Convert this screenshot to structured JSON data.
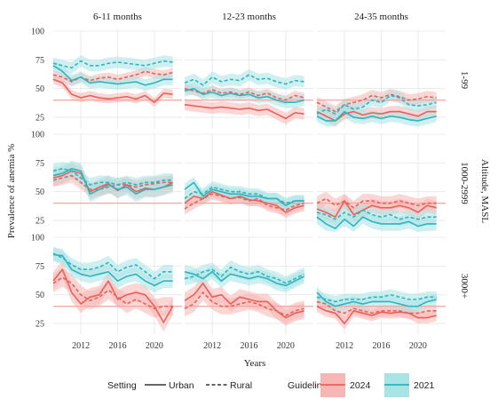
{
  "chart_data": {
    "type": "line",
    "xlabel": "Years",
    "ylabel": "Prevalence of anemia %",
    "row_group_label": "Altitude, MASL",
    "columns": [
      "6-11 months",
      "12-23 months",
      "24-35 months"
    ],
    "rows": [
      "1-99",
      "1000-2999",
      "3000+"
    ],
    "xlim": [
      2009,
      2023
    ],
    "ylim": [
      15,
      100
    ],
    "x_ticks": [
      2012,
      2016,
      2020
    ],
    "x_tick_labels": [
      "2012",
      "2016",
      "2020"
    ],
    "y_ticks": [
      25,
      50,
      75,
      100
    ],
    "y_tick_labels": [
      "25",
      "50",
      "75",
      "100"
    ],
    "grid": true,
    "legend": {
      "position": "bottom",
      "setting_title": "Setting",
      "setting_items": [
        {
          "label": "Urban",
          "style": "solid"
        },
        {
          "label": "Rural",
          "style": "dashed"
        }
      ],
      "guideline_title": "Guideline",
      "guideline_items": [
        {
          "label": "2024",
          "color": "#e8605c",
          "fill": "#f6b6b3"
        },
        {
          "label": "2021",
          "color": "#2fb3bd",
          "fill": "#a8e3e6"
        }
      ]
    },
    "guideline_reference_2024": 40,
    "years": [
      2009,
      2010,
      2011,
      2012,
      2013,
      2014,
      2015,
      2016,
      2017,
      2018,
      2019,
      2020,
      2021,
      2022
    ],
    "panels": [
      {
        "row": "1-99",
        "col": "6-11 months",
        "series": [
          {
            "guideline": "2024",
            "setting": "Urban",
            "values": [
              58,
              55,
              45,
              42,
              44,
              42,
              41,
              42,
              43,
              41,
              44,
              38,
              46,
              45
            ],
            "band": 4
          },
          {
            "guideline": "2024",
            "setting": "Rural",
            "values": [
              62,
              60,
              56,
              60,
              57,
              59,
              60,
              58,
              60,
              62,
              65,
              63,
              62,
              64
            ],
            "band": 4
          },
          {
            "guideline": "2021",
            "setting": "Urban",
            "values": [
              70,
              65,
              57,
              60,
              55,
              56,
              55,
              54,
              55,
              56,
              53,
              55,
              58,
              58
            ],
            "band": 5
          },
          {
            "guideline": "2021",
            "setting": "Rural",
            "values": [
              72,
              70,
              68,
              74,
              70,
              70,
              72,
              73,
              72,
              71,
              70,
              72,
              74,
              73
            ],
            "band": 5
          }
        ]
      },
      {
        "row": "1-99",
        "col": "12-23 months",
        "series": [
          {
            "guideline": "2024",
            "setting": "Urban",
            "values": [
              36,
              35,
              34,
              33,
              34,
              33,
              32,
              33,
              31,
              32,
              28,
              24,
              29,
              28
            ],
            "band": 5
          },
          {
            "guideline": "2024",
            "setting": "Rural",
            "values": [
              50,
              48,
              46,
              49,
              46,
              47,
              45,
              47,
              44,
              46,
              42,
              40,
              44,
              42
            ],
            "band": 4
          },
          {
            "guideline": "2021",
            "setting": "Urban",
            "values": [
              48,
              50,
              45,
              47,
              44,
              46,
              44,
              45,
              42,
              43,
              40,
              38,
              38,
              40
            ],
            "band": 5
          },
          {
            "guideline": "2021",
            "setting": "Rural",
            "values": [
              55,
              58,
              53,
              60,
              56,
              58,
              57,
              62,
              58,
              59,
              56,
              54,
              57,
              56
            ],
            "band": 5
          }
        ]
      },
      {
        "row": "1-99",
        "col": "24-35 months",
        "series": [
          {
            "guideline": "2024",
            "setting": "Urban",
            "values": [
              30,
              26,
              22,
              28,
              30,
              27,
              29,
              28,
              30,
              30,
              28,
              26,
              30,
              30
            ],
            "band": 5
          },
          {
            "guideline": "2024",
            "setting": "Rural",
            "values": [
              38,
              34,
              30,
              36,
              38,
              40,
              44,
              42,
              45,
              43,
              40,
              41,
              43,
              42
            ],
            "band": 5
          },
          {
            "guideline": "2021",
            "setting": "Urban",
            "values": [
              26,
              22,
              22,
              30,
              25,
              24,
              26,
              24,
              26,
              25,
              23,
              22,
              24,
              26
            ],
            "band": 5
          },
          {
            "guideline": "2021",
            "setting": "Rural",
            "values": [
              28,
              32,
              28,
              36,
              32,
              34,
              40,
              38,
              44,
              42,
              36,
              35,
              36,
              38
            ],
            "band": 5
          }
        ]
      },
      {
        "row": "1000-2999",
        "col": "6-11 months",
        "series": [
          {
            "guideline": "2024",
            "setting": "Urban",
            "values": [
              62,
              64,
              68,
              66,
              50,
              54,
              57,
              51,
              56,
              50,
              53,
              52,
              54,
              58
            ],
            "band": 7
          },
          {
            "guideline": "2024",
            "setting": "Rural",
            "values": [
              60,
              62,
              64,
              58,
              52,
              52,
              54,
              56,
              56,
              54,
              56,
              57,
              58,
              58
            ],
            "band": 6
          },
          {
            "guideline": "2021",
            "setting": "Urban",
            "values": [
              64,
              66,
              70,
              68,
              48,
              52,
              56,
              52,
              54,
              48,
              52,
              52,
              54,
              56
            ],
            "band": 7
          },
          {
            "guideline": "2021",
            "setting": "Rural",
            "values": [
              68,
              70,
              68,
              62,
              56,
              58,
              58,
              56,
              58,
              56,
              58,
              58,
              60,
              60
            ],
            "band": 6
          }
        ]
      },
      {
        "row": "1000-2999",
        "col": "12-23 months",
        "series": [
          {
            "guideline": "2024",
            "setting": "Urban",
            "values": [
              40,
              46,
              44,
              50,
              47,
              44,
              46,
              43,
              42,
              40,
              38,
              32,
              36,
              38
            ],
            "band": 5
          },
          {
            "guideline": "2024",
            "setting": "Rural",
            "values": [
              35,
              40,
              44,
              48,
              46,
              44,
              45,
              42,
              44,
              38,
              36,
              34,
              38,
              40
            ],
            "band": 5
          },
          {
            "guideline": "2021",
            "setting": "Urban",
            "values": [
              52,
              58,
              46,
              52,
              50,
              48,
              48,
              46,
              46,
              44,
              44,
              38,
              42,
              42
            ],
            "band": 5
          },
          {
            "guideline": "2021",
            "setting": "Rural",
            "values": [
              44,
              50,
              48,
              54,
              52,
              50,
              50,
              48,
              48,
              44,
              44,
              40,
              42,
              42
            ],
            "band": 5
          }
        ]
      },
      {
        "row": "1000-2999",
        "col": "24-35 months",
        "series": [
          {
            "guideline": "2024",
            "setting": "Urban",
            "values": [
              35,
              32,
              28,
              42,
              30,
              34,
              38,
              36,
              36,
              38,
              36,
              32,
              38,
              36
            ],
            "band": 6
          },
          {
            "guideline": "2024",
            "setting": "Rural",
            "values": [
              40,
              44,
              38,
              42,
              36,
              42,
              42,
              40,
              40,
              42,
              40,
              38,
              40,
              40
            ],
            "band": 6
          },
          {
            "guideline": "2021",
            "setting": "Urban",
            "values": [
              28,
              22,
              18,
              26,
              20,
              28,
              24,
              22,
              22,
              22,
              24,
              20,
              22,
              22
            ],
            "band": 6
          },
          {
            "guideline": "2021",
            "setting": "Rural",
            "values": [
              32,
              30,
              26,
              32,
              28,
              34,
              30,
              28,
              30,
              26,
              28,
              26,
              28,
              28
            ],
            "band": 6
          }
        ]
      },
      {
        "row": "3000+",
        "col": "6-11 months",
        "series": [
          {
            "guideline": "2024",
            "setting": "Urban",
            "values": [
              62,
              72,
              52,
              42,
              48,
              50,
              62,
              46,
              50,
              52,
              50,
              40,
              26,
              40
            ],
            "band": 8
          },
          {
            "guideline": "2024",
            "setting": "Rural",
            "values": [
              60,
              65,
              60,
              50,
              45,
              48,
              54,
              48,
              42,
              46,
              42,
              38,
              40,
              40
            ],
            "band": 8
          },
          {
            "guideline": "2021",
            "setting": "Urban",
            "values": [
              85,
              84,
              72,
              68,
              66,
              68,
              70,
              62,
              66,
              68,
              62,
              58,
              62,
              62
            ],
            "band": 6
          },
          {
            "guideline": "2021",
            "setting": "Rural",
            "values": [
              86,
              82,
              76,
              72,
              72,
              74,
              78,
              70,
              74,
              76,
              70,
              64,
              70,
              70
            ],
            "band": 6
          }
        ]
      },
      {
        "row": "3000+",
        "col": "12-23 months",
        "series": [
          {
            "guideline": "2024",
            "setting": "Urban",
            "values": [
              45,
              50,
              60,
              48,
              50,
              42,
              48,
              46,
              44,
              44,
              36,
              30,
              34,
              36
            ],
            "band": 7
          },
          {
            "guideline": "2024",
            "setting": "Rural",
            "values": [
              38,
              42,
              52,
              44,
              40,
              40,
              42,
              44,
              42,
              38,
              36,
              32,
              36,
              38
            ],
            "band": 7
          },
          {
            "guideline": "2021",
            "setting": "Urban",
            "values": [
              70,
              68,
              64,
              70,
              62,
              68,
              66,
              64,
              66,
              64,
              60,
              58,
              62,
              66
            ],
            "band": 6
          },
          {
            "guideline": "2021",
            "setting": "Rural",
            "values": [
              64,
              66,
              70,
              72,
              66,
              74,
              70,
              68,
              70,
              66,
              64,
              60,
              64,
              68
            ],
            "band": 6
          }
        ]
      },
      {
        "row": "3000+",
        "col": "24-35 months",
        "series": [
          {
            "guideline": "2024",
            "setting": "Urban",
            "values": [
              40,
              36,
              34,
              25,
              36,
              34,
              32,
              35,
              34,
              35,
              34,
              30,
              30,
              32
            ],
            "band": 5
          },
          {
            "guideline": "2024",
            "setting": "Rural",
            "values": [
              44,
              42,
              36,
              34,
              38,
              36,
              34,
              36,
              36,
              36,
              34,
              34,
              36,
              36
            ],
            "band": 5
          },
          {
            "guideline": "2021",
            "setting": "Urban",
            "values": [
              52,
              44,
              40,
              42,
              44,
              42,
              44,
              44,
              44,
              42,
              40,
              40,
              44,
              46
            ],
            "band": 5
          },
          {
            "guideline": "2021",
            "setting": "Rural",
            "values": [
              48,
              46,
              44,
              46,
              46,
              46,
              48,
              48,
              50,
              48,
              46,
              46,
              48,
              48
            ],
            "band": 5
          }
        ]
      }
    ]
  }
}
